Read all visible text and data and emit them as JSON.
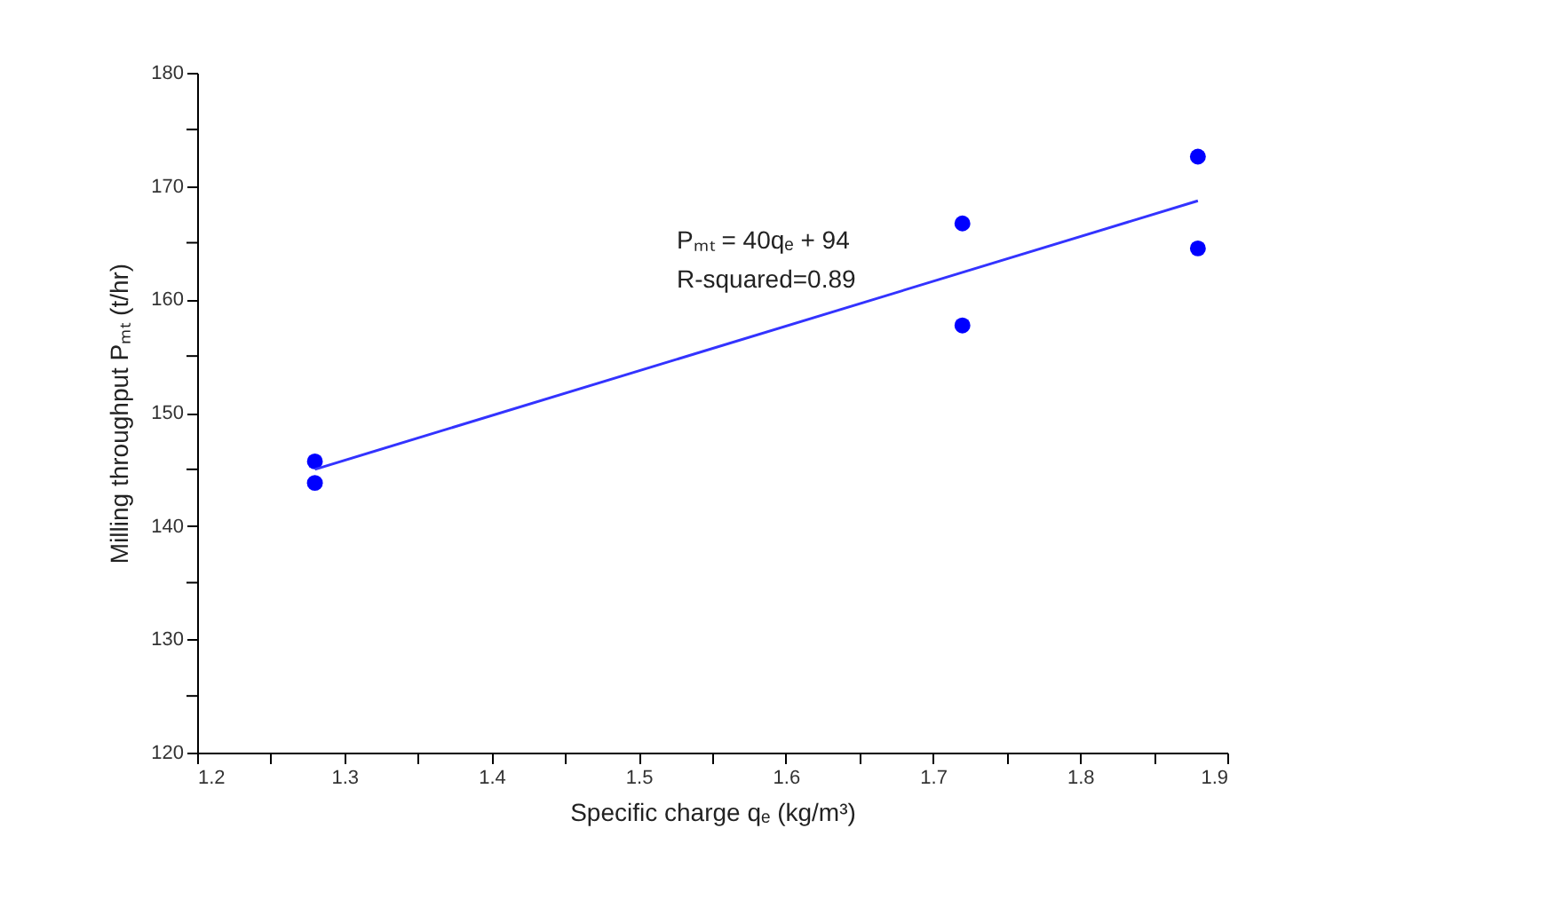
{
  "chart_data": {
    "type": "scatter",
    "xlabel": "Specific charge qₑ (kg/m³)",
    "ylabel": "Milling throughput Pₘₜ (t/hr)",
    "xlim": [
      1.2,
      1.9
    ],
    "ylim": [
      120,
      180
    ],
    "xticks": [
      1.2,
      {
        "value": 1.25,
        "label": null
      },
      1.3,
      {
        "value": 1.35,
        "label": null
      },
      1.4,
      {
        "value": 1.45,
        "label": null
      },
      1.5,
      {
        "value": 1.55,
        "label": null
      },
      1.6,
      {
        "value": 1.65,
        "label": null
      },
      1.7,
      {
        "value": 1.75,
        "label": null
      },
      1.8,
      {
        "value": 1.85,
        "label": null
      },
      1.9
    ],
    "yticks": [
      120,
      {
        "value": 125,
        "label": null
      },
      130,
      {
        "value": 135,
        "label": null
      },
      140,
      {
        "value": 145,
        "label": null
      },
      150,
      {
        "value": 155,
        "label": null
      },
      160,
      {
        "value": 165,
        "label": null
      },
      170,
      {
        "value": 175,
        "label": null
      },
      180
    ],
    "grid": false,
    "marker": "circle",
    "series": [
      {
        "color": "#0000ff",
        "x": [
          1.28,
          1.28,
          1.72,
          1.72,
          1.88,
          1.88
        ],
        "values": [
          145.7,
          143.8,
          166.7,
          157.7,
          172.6,
          164.5
        ]
      },
      {
        "type": "line",
        "color": "#3333ff",
        "line_style": "solid",
        "marker": "none",
        "x": [
          1.28,
          1.88
        ],
        "values": [
          145.0,
          168.7
        ]
      }
    ],
    "annotations": [
      "Pₘₜ = 40qₑ + 94",
      "R-squared=0.89"
    ]
  }
}
